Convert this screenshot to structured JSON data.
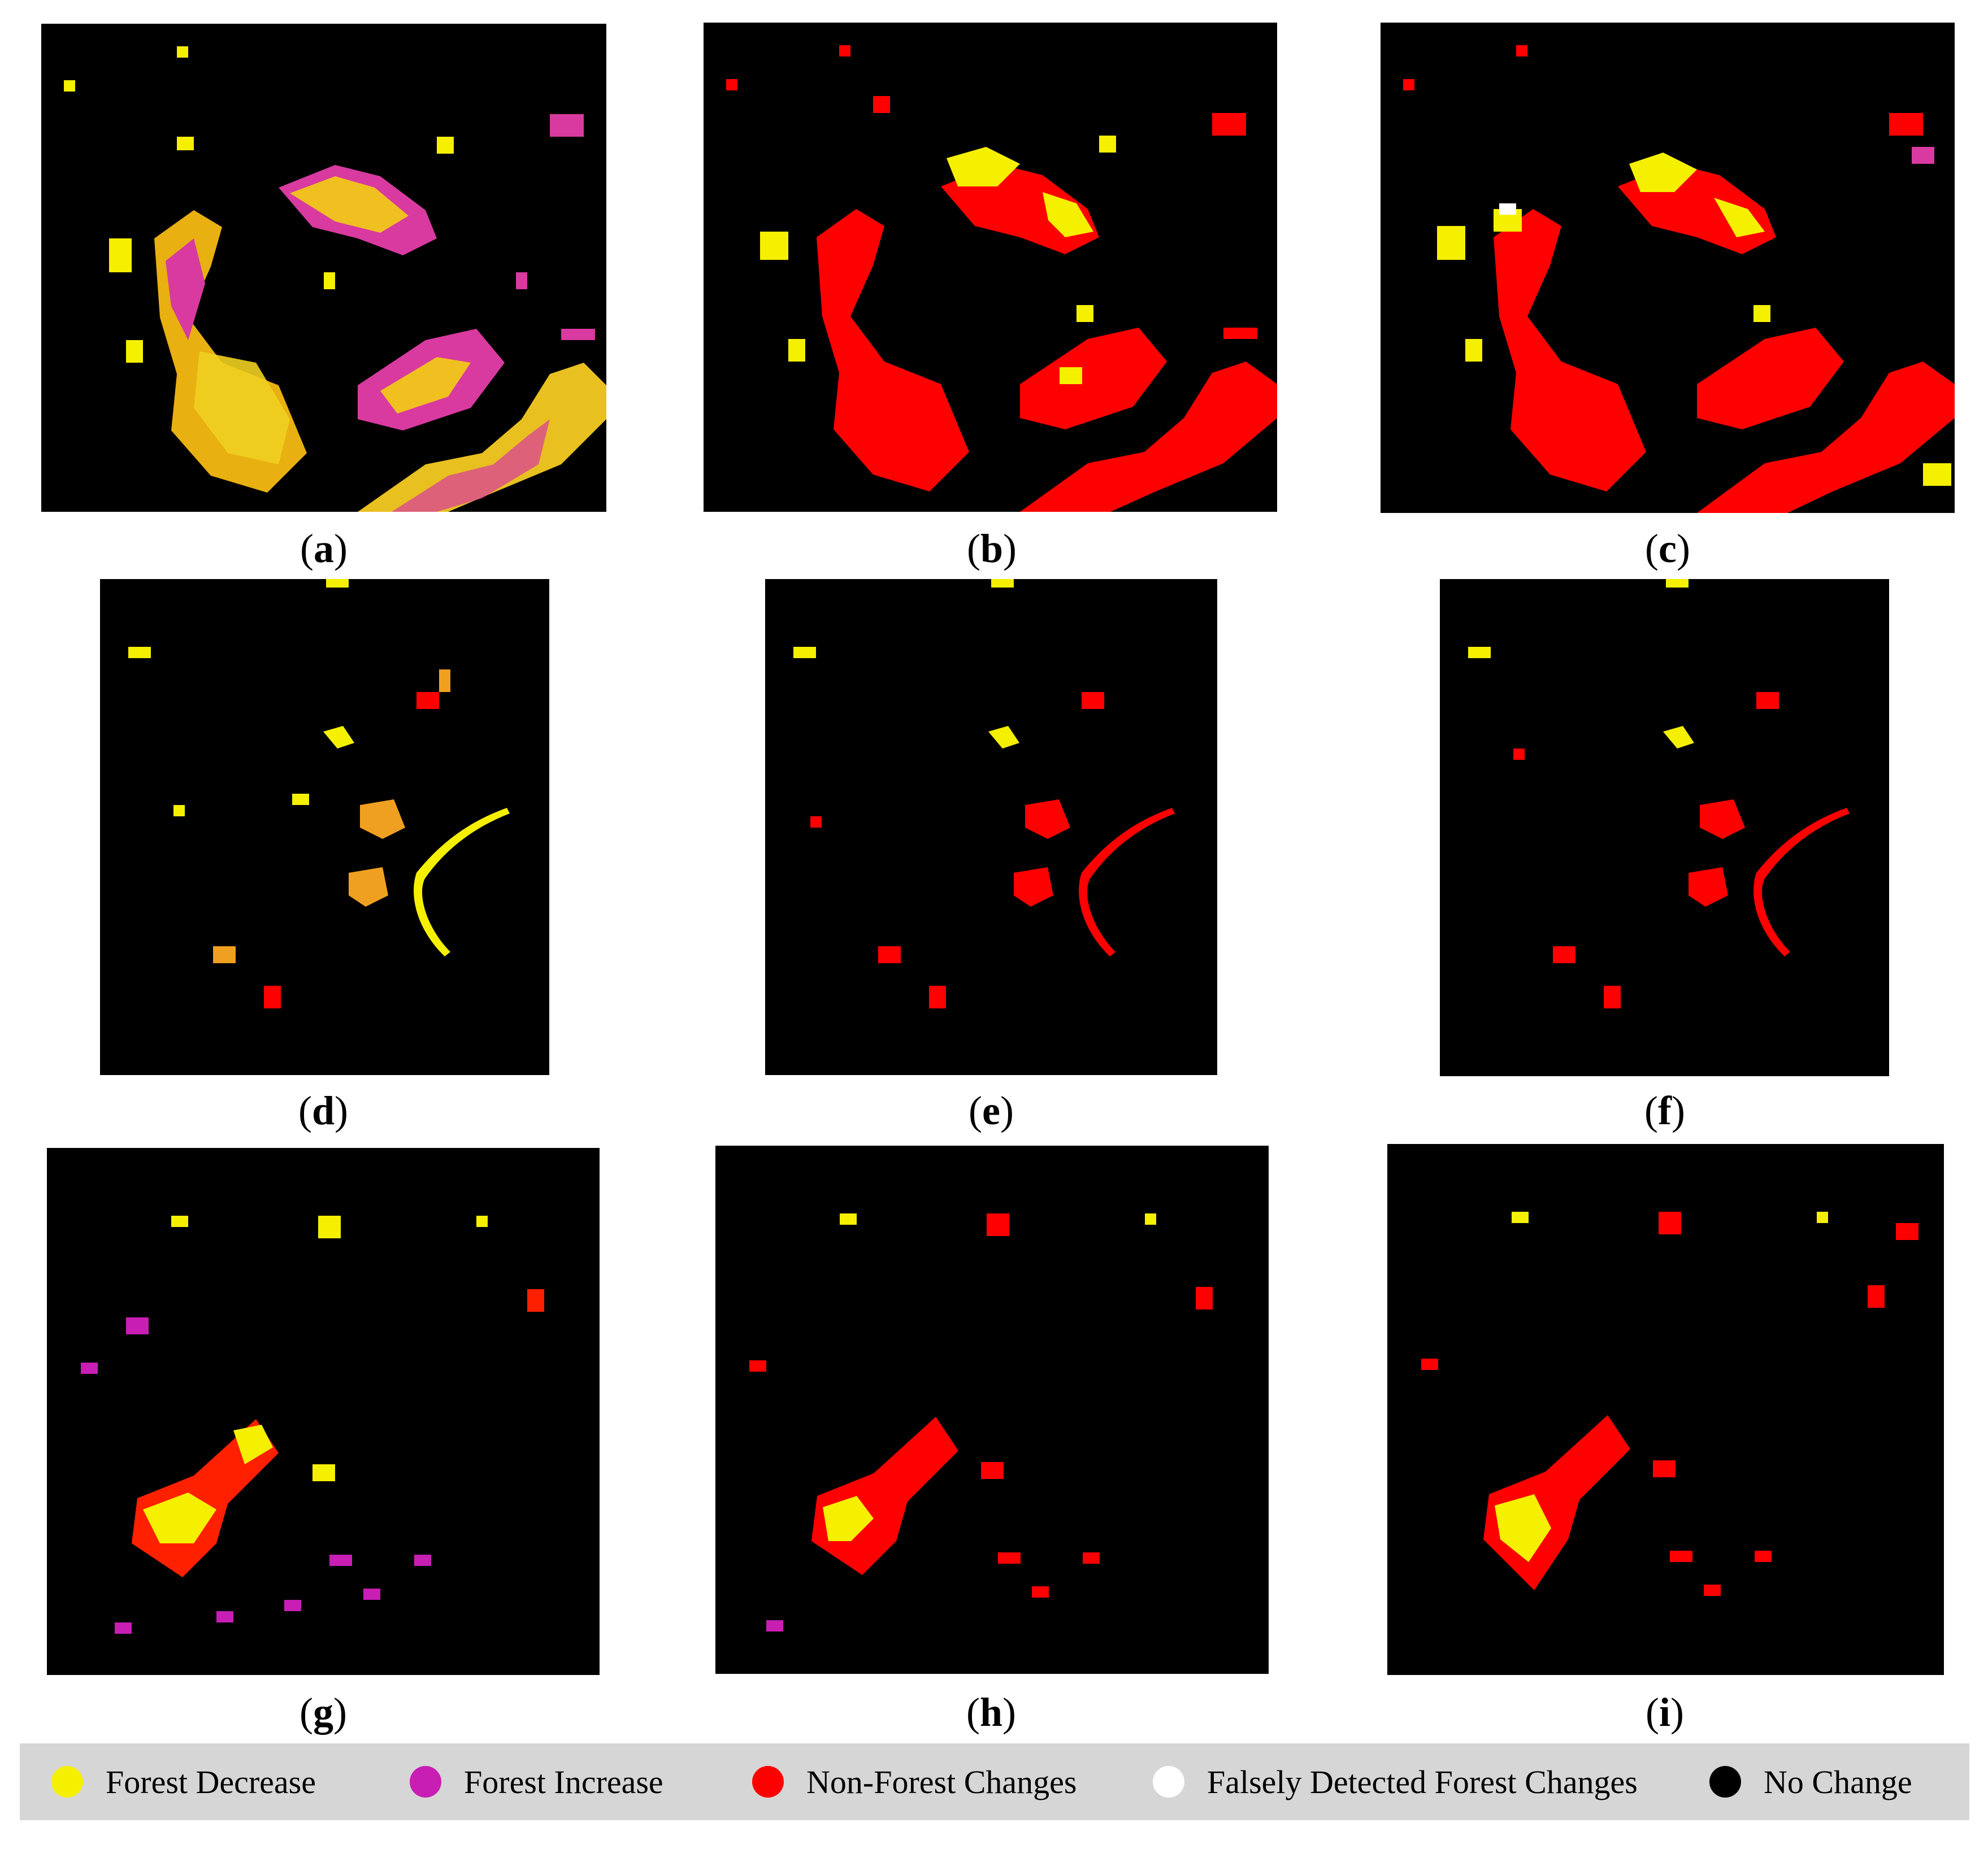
{
  "panels": [
    {
      "id": "a",
      "label": "a"
    },
    {
      "id": "b",
      "label": "b"
    },
    {
      "id": "c",
      "label": "c"
    },
    {
      "id": "d",
      "label": "d"
    },
    {
      "id": "e",
      "label": "e"
    },
    {
      "id": "f",
      "label": "f"
    },
    {
      "id": "g",
      "label": "g"
    },
    {
      "id": "h",
      "label": "h"
    },
    {
      "id": "i",
      "label": "i"
    }
  ],
  "legend": {
    "items": [
      {
        "label": "Forest Decrease",
        "color": "#f5f000"
      },
      {
        "label": "Forest Increase",
        "color": "#c81eb4"
      },
      {
        "label": "Non-Forest Changes",
        "color": "#ff0000"
      },
      {
        "label": "Falsely Detected Forest Changes",
        "color": "#ffffff"
      },
      {
        "label": "No Change",
        "color": "#000000"
      }
    ]
  }
}
